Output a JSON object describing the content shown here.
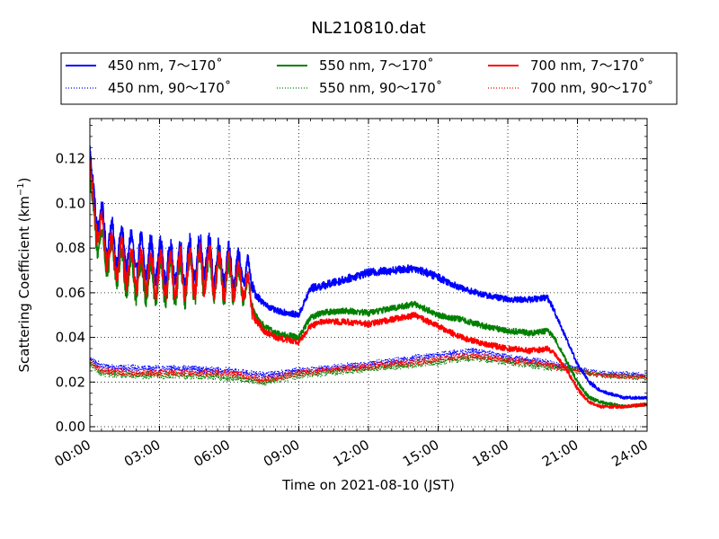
{
  "chart_data": {
    "type": "line",
    "title": "NL210810.dat",
    "xlabel": "Time on 2021-08-10 (JST)",
    "ylabel": "Scattering Coefficient (km",
    "ylabel_sup": "−1",
    "ylabel_close": ")",
    "xlim": [
      0,
      24
    ],
    "ylim": [
      -0.002,
      0.138
    ],
    "x_ticks": [
      0,
      3,
      6,
      9,
      12,
      15,
      18,
      21,
      24
    ],
    "x_tick_labels": [
      "00:00",
      "03:00",
      "06:00",
      "09:00",
      "12:00",
      "15:00",
      "18:00",
      "21:00",
      "24:00"
    ],
    "y_ticks": [
      0.0,
      0.02,
      0.04,
      0.06,
      0.08,
      0.1,
      0.12
    ],
    "y_tick_labels": [
      "0.00",
      "0.02",
      "0.04",
      "0.06",
      "0.08",
      "0.10",
      "0.12"
    ],
    "grid": true,
    "legend_position": "above plot, 3 columns",
    "series": [
      {
        "name": "450 nm, 7～170˚",
        "color": "#0000ff",
        "style": "solid",
        "x": [
          0,
          0.1,
          0.5,
          1.0,
          2.0,
          3.0,
          4.0,
          5.0,
          6.0,
          6.8,
          7.1,
          7.5,
          8.0,
          9.0,
          9.5,
          10.0,
          11.0,
          12.0,
          13.0,
          14.0,
          15.0,
          16.0,
          17.0,
          18.0,
          19.0,
          19.7,
          20.0,
          20.5,
          21.0,
          21.5,
          22.0,
          23.0,
          24.0
        ],
        "values": [
          0.125,
          0.105,
          0.09,
          0.082,
          0.077,
          0.074,
          0.072,
          0.076,
          0.071,
          0.07,
          0.06,
          0.055,
          0.052,
          0.05,
          0.062,
          0.063,
          0.066,
          0.069,
          0.07,
          0.071,
          0.067,
          0.062,
          0.059,
          0.057,
          0.057,
          0.058,
          0.052,
          0.04,
          0.028,
          0.02,
          0.016,
          0.013,
          0.013
        ],
        "amp": [
          0.005,
          0.008,
          0.009,
          0.009,
          0.009,
          0.009,
          0.01,
          0.01,
          0.009,
          0.006,
          0.005,
          0.003,
          0.003,
          0.003,
          0.004,
          0.004,
          0.004,
          0.004,
          0.004,
          0.004,
          0.004,
          0.003,
          0.003,
          0.003,
          0.003,
          0.003,
          0.003,
          0.002,
          0.002,
          0.002,
          0.0015,
          0.0015,
          0.0015
        ]
      },
      {
        "name": "450 nm, 90～170˚",
        "color": "#0000ff",
        "style": "dotted",
        "x": [
          0,
          0.5,
          2.0,
          4.0,
          6.0,
          7.5,
          9.0,
          12.0,
          15.0,
          16.5,
          18.0,
          19.5,
          20.5,
          21.0,
          22.0,
          24.0
        ],
        "values": [
          0.03,
          0.027,
          0.026,
          0.026,
          0.025,
          0.023,
          0.025,
          0.028,
          0.032,
          0.034,
          0.031,
          0.029,
          0.027,
          0.026,
          0.024,
          0.023
        ],
        "amp": [
          0.002,
          0.002,
          0.002,
          0.002,
          0.002,
          0.002,
          0.002,
          0.002,
          0.002,
          0.002,
          0.002,
          0.002,
          0.002,
          0.0015,
          0.0015,
          0.0015
        ]
      },
      {
        "name": "550 nm, 7～170˚",
        "color": "#008000",
        "style": "solid",
        "x": [
          0,
          0.1,
          0.5,
          1.0,
          2.0,
          3.0,
          4.0,
          5.0,
          6.0,
          6.8,
          7.1,
          7.5,
          8.0,
          9.0,
          9.5,
          10.0,
          11.0,
          12.0,
          13.0,
          14.0,
          15.0,
          16.0,
          17.0,
          18.0,
          19.0,
          19.7,
          20.0,
          20.5,
          21.0,
          21.5,
          22.0,
          23.0,
          24.0
        ],
        "values": [
          0.112,
          0.095,
          0.08,
          0.073,
          0.066,
          0.064,
          0.065,
          0.069,
          0.065,
          0.062,
          0.05,
          0.045,
          0.042,
          0.04,
          0.049,
          0.051,
          0.052,
          0.051,
          0.053,
          0.055,
          0.05,
          0.048,
          0.045,
          0.043,
          0.042,
          0.043,
          0.04,
          0.03,
          0.02,
          0.013,
          0.011,
          0.009,
          0.01
        ],
        "amp": [
          0.004,
          0.008,
          0.009,
          0.009,
          0.009,
          0.009,
          0.01,
          0.01,
          0.009,
          0.006,
          0.004,
          0.003,
          0.003,
          0.003,
          0.003,
          0.003,
          0.003,
          0.003,
          0.003,
          0.003,
          0.003,
          0.003,
          0.003,
          0.003,
          0.003,
          0.003,
          0.002,
          0.002,
          0.002,
          0.002,
          0.0015,
          0.0015,
          0.0015
        ]
      },
      {
        "name": "550 nm, 90～170˚",
        "color": "#008000",
        "style": "dotted",
        "x": [
          0,
          0.5,
          2.0,
          4.0,
          6.0,
          7.5,
          9.0,
          12.0,
          15.0,
          16.5,
          18.0,
          19.5,
          20.5,
          21.0,
          22.0,
          24.0
        ],
        "values": [
          0.028,
          0.024,
          0.023,
          0.023,
          0.022,
          0.02,
          0.023,
          0.026,
          0.029,
          0.031,
          0.029,
          0.027,
          0.026,
          0.025,
          0.023,
          0.022
        ],
        "amp": [
          0.002,
          0.002,
          0.002,
          0.002,
          0.002,
          0.002,
          0.002,
          0.002,
          0.002,
          0.002,
          0.002,
          0.002,
          0.002,
          0.0015,
          0.0015,
          0.0015
        ]
      },
      {
        "name": "700 nm, 7～170˚",
        "color": "#ff0000",
        "style": "solid",
        "x": [
          0,
          0.1,
          0.5,
          1.0,
          2.0,
          3.0,
          4.0,
          5.0,
          6.0,
          6.8,
          7.1,
          7.5,
          8.0,
          9.0,
          9.5,
          10.0,
          11.0,
          12.0,
          13.0,
          14.0,
          15.0,
          16.0,
          17.0,
          18.0,
          19.0,
          19.7,
          20.0,
          20.5,
          21.0,
          21.5,
          22.0,
          23.0,
          24.0
        ],
        "values": [
          0.12,
          0.1,
          0.085,
          0.076,
          0.07,
          0.068,
          0.068,
          0.071,
          0.067,
          0.063,
          0.048,
          0.043,
          0.04,
          0.038,
          0.045,
          0.047,
          0.047,
          0.046,
          0.048,
          0.05,
          0.045,
          0.04,
          0.037,
          0.035,
          0.034,
          0.035,
          0.033,
          0.026,
          0.017,
          0.011,
          0.009,
          0.009,
          0.01
        ],
        "amp": [
          0.004,
          0.008,
          0.009,
          0.009,
          0.009,
          0.009,
          0.01,
          0.01,
          0.009,
          0.006,
          0.004,
          0.003,
          0.003,
          0.003,
          0.003,
          0.003,
          0.003,
          0.003,
          0.003,
          0.003,
          0.003,
          0.003,
          0.003,
          0.003,
          0.003,
          0.003,
          0.002,
          0.002,
          0.002,
          0.0015,
          0.0015,
          0.0015,
          0.0015
        ]
      },
      {
        "name": "700 nm, 90～170˚",
        "color": "#ff0000",
        "style": "dotted",
        "x": [
          0,
          0.5,
          2.0,
          4.0,
          6.0,
          7.5,
          9.0,
          12.0,
          15.0,
          16.5,
          18.0,
          19.5,
          20.5,
          21.0,
          22.0,
          24.0
        ],
        "values": [
          0.029,
          0.025,
          0.024,
          0.024,
          0.024,
          0.021,
          0.024,
          0.027,
          0.03,
          0.032,
          0.03,
          0.028,
          0.026,
          0.025,
          0.023,
          0.022
        ],
        "amp": [
          0.002,
          0.002,
          0.002,
          0.002,
          0.002,
          0.002,
          0.002,
          0.002,
          0.002,
          0.002,
          0.002,
          0.002,
          0.002,
          0.0015,
          0.0015,
          0.0015
        ]
      }
    ]
  }
}
